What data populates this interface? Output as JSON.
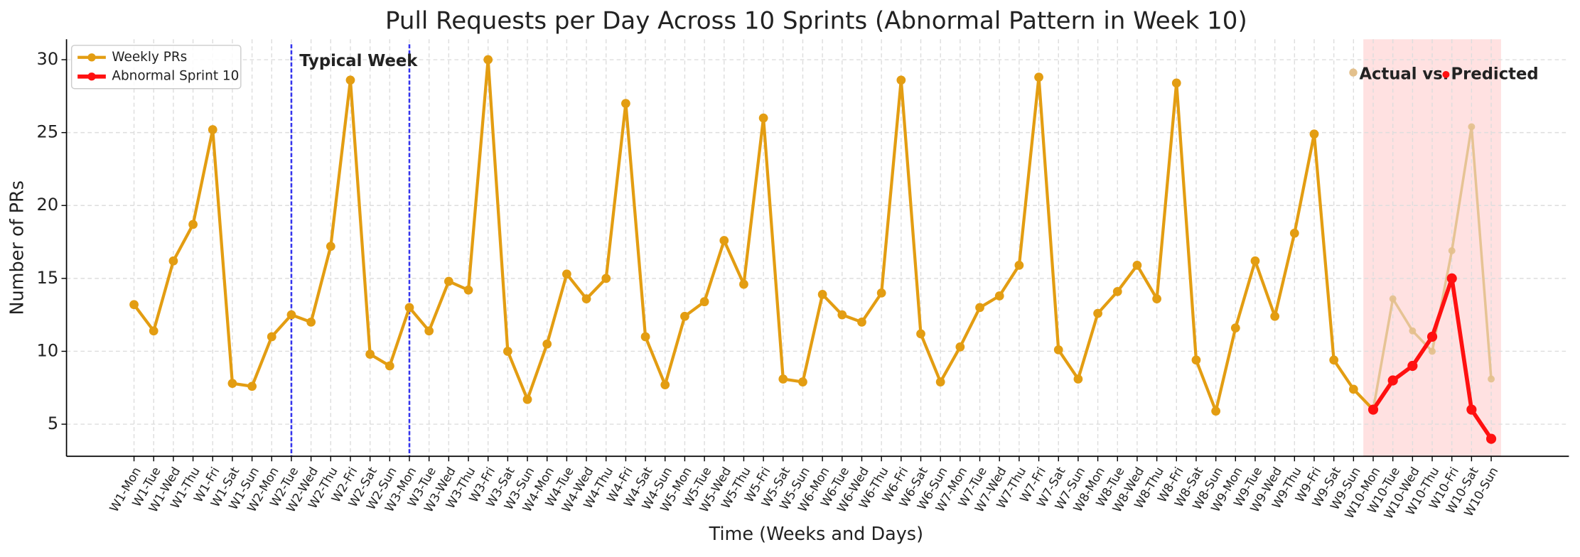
{
  "chart_data": {
    "type": "line",
    "title": "Pull Requests per Day Across 10 Sprints (Abnormal Pattern in Week 10)",
    "x_label": "Time (Weeks and Days)",
    "y_label": "Number of PRs",
    "categories": [
      "W1-Mon",
      "W1-Tue",
      "W1-Wed",
      "W1-Thu",
      "W1-Fri",
      "W1-Sat",
      "W1-Sun",
      "W2-Mon",
      "W2-Tue",
      "W2-Wed",
      "W2-Thu",
      "W2-Fri",
      "W2-Sat",
      "W2-Sun",
      "W3-Mon",
      "W3-Tue",
      "W3-Wed",
      "W3-Thu",
      "W3-Fri",
      "W3-Sat",
      "W3-Sun",
      "W4-Mon",
      "W4-Tue",
      "W4-Wed",
      "W4-Thu",
      "W4-Fri",
      "W4-Sat",
      "W4-Sun",
      "W5-Mon",
      "W5-Tue",
      "W5-Wed",
      "W5-Thu",
      "W5-Fri",
      "W5-Sat",
      "W5-Sun",
      "W6-Mon",
      "W6-Tue",
      "W6-Wed",
      "W6-Thu",
      "W6-Fri",
      "W6-Sat",
      "W6-Sun",
      "W7-Mon",
      "W7-Tue",
      "W7-Wed",
      "W7-Thu",
      "W7-Fri",
      "W7-Sat",
      "W7-Sun",
      "W8-Mon",
      "W8-Tue",
      "W8-Wed",
      "W8-Thu",
      "W8-Fri",
      "W8-Sat",
      "W8-Sun",
      "W9-Mon",
      "W9-Tue",
      "W9-Wed",
      "W9-Thu",
      "W9-Fri",
      "W9-Sat",
      "W9-Sun",
      "W10-Mon",
      "W10-Tue",
      "W10-Wed",
      "W10-Thu",
      "W10-Fri",
      "W10-Sat",
      "W10-Sun"
    ],
    "series": [
      {
        "name": "Weekly PRs",
        "color": "#e39d12",
        "values": [
          13.2,
          11.4,
          16.2,
          18.7,
          25.2,
          7.8,
          7.6,
          11.0,
          12.5,
          12.0,
          17.2,
          28.6,
          9.8,
          9.0,
          13.0,
          11.4,
          14.8,
          14.2,
          30.0,
          10.0,
          6.7,
          10.5,
          15.3,
          13.6,
          15.0,
          27.0,
          11.0,
          7.7,
          12.4,
          13.4,
          17.6,
          14.6,
          26.0,
          8.1,
          7.9,
          13.9,
          12.5,
          12.0,
          14.0,
          28.6,
          11.2,
          7.9,
          10.3,
          13.0,
          13.8,
          15.9,
          28.8,
          10.1,
          8.1,
          12.6,
          14.1,
          15.9,
          13.6,
          28.4,
          9.4,
          5.9,
          11.6,
          16.2,
          12.4,
          18.1,
          24.9,
          9.4,
          7.4,
          6.0,
          null,
          null,
          null,
          null,
          null,
          null
        ]
      },
      {
        "name": "Abnormal Sprint 10",
        "color": "#ff1010",
        "values": [
          null,
          null,
          null,
          null,
          null,
          null,
          null,
          null,
          null,
          null,
          null,
          null,
          null,
          null,
          null,
          null,
          null,
          null,
          null,
          null,
          null,
          null,
          null,
          null,
          null,
          null,
          null,
          null,
          null,
          null,
          null,
          null,
          null,
          null,
          null,
          null,
          null,
          null,
          null,
          null,
          null,
          null,
          null,
          null,
          null,
          null,
          null,
          null,
          null,
          null,
          null,
          null,
          null,
          null,
          null,
          null,
          null,
          null,
          null,
          null,
          null,
          null,
          null,
          6,
          8,
          9,
          11,
          15,
          6,
          4
        ]
      }
    ],
    "faded_series": {
      "color": "#e3c08c",
      "values": [
        null,
        null,
        null,
        null,
        null,
        null,
        null,
        null,
        null,
        null,
        null,
        null,
        null,
        null,
        null,
        null,
        null,
        null,
        null,
        null,
        null,
        null,
        null,
        null,
        null,
        null,
        null,
        null,
        null,
        null,
        null,
        null,
        null,
        null,
        null,
        null,
        null,
        null,
        null,
        null,
        null,
        null,
        null,
        null,
        null,
        null,
        null,
        null,
        null,
        null,
        null,
        null,
        null,
        null,
        null,
        null,
        null,
        null,
        null,
        null,
        null,
        null,
        null,
        6,
        13.6,
        11.4,
        10.0,
        16.9,
        25.4,
        8.1
      ]
    },
    "typical_week": {
      "label": "Typical Week",
      "from": "W2-Tue",
      "to": "W3-Mon",
      "color": "#3333ee"
    },
    "highlight": {
      "from": "W10-Mon",
      "to": "W10-Sun",
      "color": "#ffdcdc",
      "labels": [
        "Actual vs.",
        "Predicted"
      ]
    },
    "ylim": [
      2.8,
      31.4
    ],
    "yticks": [
      5,
      10,
      15,
      20,
      25,
      30
    ],
    "grid": true,
    "legend": "upper left"
  }
}
